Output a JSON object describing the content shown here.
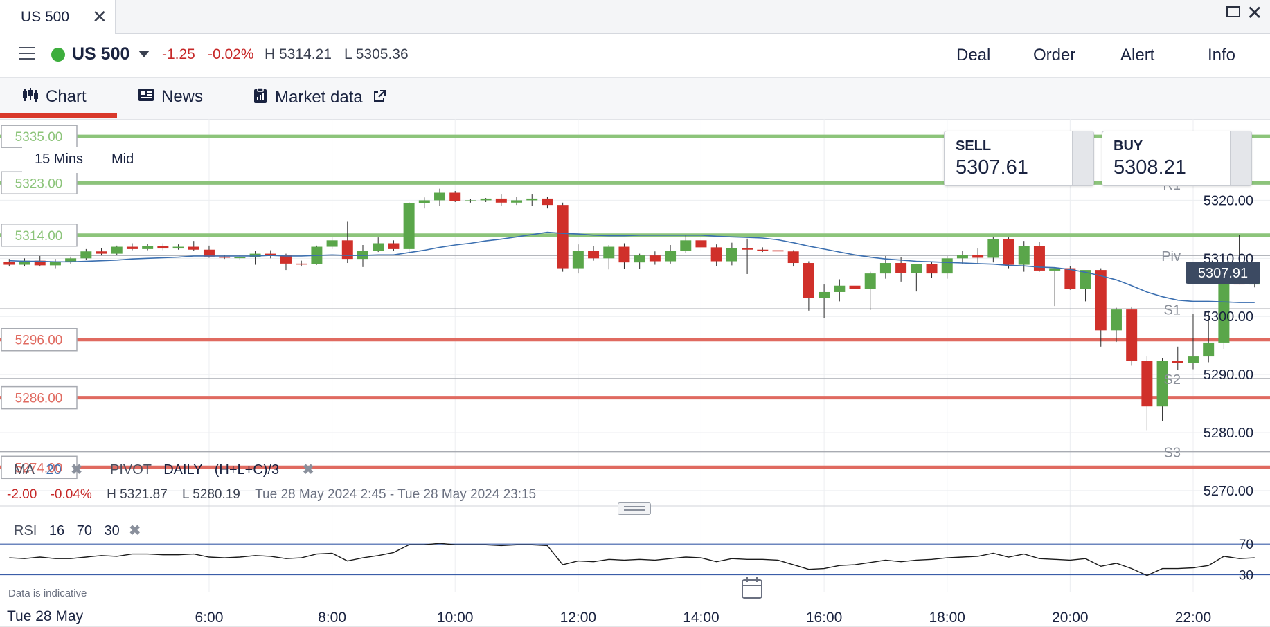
{
  "window": {
    "tab_title": "US 500",
    "close_glyph": "✕",
    "maximize_glyph": "☐",
    "window_close_glyph": "✕"
  },
  "header": {
    "instrument": "US 500",
    "change": "-1.25",
    "change_pct": "-0.02%",
    "high": "H 5314.21",
    "low": "L 5305.36",
    "actions": [
      "Deal",
      "Order",
      "Alert",
      "Info"
    ]
  },
  "tabs": [
    {
      "label": "Chart",
      "icon": "candlestick-icon"
    },
    {
      "label": "News",
      "icon": "newspaper-icon"
    },
    {
      "label": "Market data",
      "icon": "clipboard-icon",
      "external": "external-link-icon"
    }
  ],
  "colors": {
    "up": "#5aa64a",
    "down": "#d0302a",
    "ma": "#3b6fb0",
    "level_up": "#8cc47a",
    "level_down": "#e06a60",
    "accent": "#d9392b"
  },
  "deal": {
    "sell_label": "SELL",
    "sell_price": "5307.61",
    "buy_label": "BUY",
    "buy_price": "5308.21"
  },
  "timeframe": {
    "interval": "15 Mins",
    "price_type": "Mid"
  },
  "levels": [
    {
      "label": "5335.00",
      "price": 5331.0,
      "color": "green"
    },
    {
      "label": "5323.00",
      "price": 5323.0,
      "color": "green"
    },
    {
      "label": "5314.00",
      "price": 5314.0,
      "color": "green"
    },
    {
      "label": "5296.00",
      "price": 5296.0,
      "color": "red"
    },
    {
      "label": "5286.00",
      "price": 5286.0,
      "color": "red"
    },
    {
      "label": "5274.00",
      "price": 5274.0,
      "color": "red"
    }
  ],
  "pivots": [
    {
      "label": "R1",
      "price": 5322.8
    },
    {
      "label": "Piv",
      "price": 5310.5
    },
    {
      "label": "S1",
      "price": 5301.3
    },
    {
      "label": "S2",
      "price": 5289.3
    },
    {
      "label": "S3",
      "price": 5276.7
    }
  ],
  "current_price": "5307.91",
  "legend": {
    "ma_label": "MA",
    "ma_period": "20",
    "pivot_label": "PIVOT",
    "pivot_period": "DAILY",
    "pivot_formula": "(H+L+C)/3",
    "summary_change": "-2.00",
    "summary_pct": "-0.04%",
    "summary_high": "H 5321.87",
    "summary_low": "L 5280.19",
    "summary_range": "Tue 28 May 2024 2:45 - Tue 28 May 2024 23:15",
    "rsi_label": "RSI",
    "rsi_period": "16",
    "rsi_upper": "70",
    "rsi_lower": "30"
  },
  "footer": {
    "disclaimer": "Data is indicative",
    "date": "Tue 28 May"
  },
  "chart_data": {
    "type": "candlestick",
    "interval": "15 Mins",
    "y_ticks": [
      "5320.00",
      "5310.00",
      "5300.00",
      "5290.00",
      "5280.00",
      "5270.00"
    ],
    "y_tick_values": [
      5320,
      5310,
      5300,
      5290,
      5280,
      5270
    ],
    "ylim": [
      5267,
      5334
    ],
    "x_ticks": [
      "6:00",
      "8:00",
      "10:00",
      "12:00",
      "14:00",
      "16:00",
      "18:00",
      "20:00",
      "22:00"
    ],
    "x_tick_hours": [
      6,
      8,
      10,
      12,
      14,
      16,
      18,
      20,
      22
    ],
    "xlim_hours": [
      2.6,
      23.25
    ],
    "candle_start_hour": 2.75,
    "candle_step_hours": 0.25,
    "candles": [
      [
        5309.4,
        5309.9,
        5308.6,
        5308.9
      ],
      [
        5308.9,
        5310.0,
        5308.6,
        5309.6
      ],
      [
        5309.6,
        5310.4,
        5308.6,
        5308.8
      ],
      [
        5308.8,
        5309.9,
        5308.3,
        5309.5
      ],
      [
        5309.5,
        5310.3,
        5309.0,
        5310.0
      ],
      [
        5310.0,
        5311.6,
        5309.8,
        5311.2
      ],
      [
        5311.2,
        5311.8,
        5310.5,
        5310.8
      ],
      [
        5310.8,
        5312.2,
        5310.6,
        5312.0
      ],
      [
        5312.0,
        5312.6,
        5311.4,
        5311.6
      ],
      [
        5311.6,
        5312.5,
        5311.4,
        5312.1
      ],
      [
        5312.1,
        5312.6,
        5311.4,
        5311.7
      ],
      [
        5311.7,
        5312.4,
        5311.5,
        5312.0
      ],
      [
        5312.0,
        5313.0,
        5311.3,
        5311.5
      ],
      [
        5311.5,
        5312.2,
        5310.1,
        5310.3
      ],
      [
        5310.3,
        5310.6,
        5309.9,
        5310.1
      ],
      [
        5310.1,
        5310.5,
        5309.8,
        5310.2
      ],
      [
        5310.2,
        5311.3,
        5308.9,
        5310.8
      ],
      [
        5310.8,
        5311.4,
        5310.0,
        5310.5
      ],
      [
        5310.5,
        5310.8,
        5308.0,
        5309.1
      ],
      [
        5309.1,
        5309.6,
        5308.6,
        5309.0
      ],
      [
        5309.0,
        5312.2,
        5308.9,
        5312.0
      ],
      [
        5312.0,
        5313.7,
        5311.6,
        5313.1
      ],
      [
        5313.1,
        5316.3,
        5309.2,
        5309.9
      ],
      [
        5309.9,
        5312.3,
        5308.5,
        5311.3
      ],
      [
        5311.3,
        5313.6,
        5311.1,
        5312.6
      ],
      [
        5312.6,
        5313.1,
        5311.3,
        5311.6
      ],
      [
        5311.6,
        5319.7,
        5311.1,
        5319.5
      ],
      [
        5319.5,
        5320.5,
        5318.6,
        5320.0
      ],
      [
        5320.0,
        5322.0,
        5319.0,
        5321.3
      ],
      [
        5321.3,
        5321.6,
        5319.7,
        5319.9
      ],
      [
        5319.9,
        5320.2,
        5319.6,
        5320.0
      ],
      [
        5320.0,
        5320.4,
        5319.7,
        5320.3
      ],
      [
        5320.3,
        5321.0,
        5319.1,
        5319.6
      ],
      [
        5319.6,
        5320.6,
        5319.2,
        5320.0
      ],
      [
        5320.0,
        5321.0,
        5319.0,
        5320.3
      ],
      [
        5320.3,
        5320.6,
        5318.6,
        5319.2
      ],
      [
        5319.2,
        5319.6,
        5307.7,
        5308.3
      ],
      [
        5308.3,
        5312.4,
        5307.4,
        5311.3
      ],
      [
        5311.3,
        5312.1,
        5309.6,
        5310.0
      ],
      [
        5310.0,
        5312.3,
        5308.1,
        5312.0
      ],
      [
        5312.0,
        5312.6,
        5308.2,
        5309.3
      ],
      [
        5309.3,
        5310.8,
        5308.2,
        5310.5
      ],
      [
        5310.5,
        5311.2,
        5308.9,
        5309.5
      ],
      [
        5309.5,
        5312.3,
        5309.1,
        5311.3
      ],
      [
        5311.3,
        5314.0,
        5310.9,
        5313.1
      ],
      [
        5313.1,
        5313.8,
        5311.4,
        5311.9
      ],
      [
        5311.9,
        5312.4,
        5308.7,
        5309.5
      ],
      [
        5309.5,
        5312.7,
        5308.8,
        5311.8
      ],
      [
        5311.8,
        5313.4,
        5307.3,
        5311.5
      ],
      [
        5311.5,
        5311.9,
        5311.1,
        5311.4
      ],
      [
        5311.4,
        5313.3,
        5310.7,
        5311.2
      ],
      [
        5311.2,
        5311.4,
        5308.6,
        5309.2
      ],
      [
        5309.2,
        5309.5,
        5301.0,
        5303.2
      ],
      [
        5303.2,
        5305.5,
        5299.7,
        5304.2
      ],
      [
        5304.2,
        5306.4,
        5302.6,
        5305.3
      ],
      [
        5305.3,
        5306.5,
        5301.9,
        5304.7
      ],
      [
        5304.7,
        5307.7,
        5301.1,
        5307.4
      ],
      [
        5307.4,
        5310.4,
        5306.5,
        5309.2
      ],
      [
        5309.2,
        5310.2,
        5306.0,
        5307.5
      ],
      [
        5307.5,
        5308.8,
        5304.3,
        5309.0
      ],
      [
        5309.0,
        5309.4,
        5306.7,
        5307.4
      ],
      [
        5307.4,
        5310.4,
        5306.5,
        5310.0
      ],
      [
        5310.0,
        5311.3,
        5309.0,
        5310.6
      ],
      [
        5310.6,
        5311.7,
        5309.1,
        5310.1
      ],
      [
        5310.1,
        5313.7,
        5309.3,
        5313.3
      ],
      [
        5313.3,
        5313.6,
        5308.3,
        5308.9
      ],
      [
        5308.9,
        5313.0,
        5307.7,
        5312.1
      ],
      [
        5312.1,
        5312.8,
        5307.7,
        5307.9
      ],
      [
        5307.9,
        5308.3,
        5301.8,
        5308.3
      ],
      [
        5308.3,
        5308.7,
        5304.6,
        5304.7
      ],
      [
        5304.7,
        5307.9,
        5302.6,
        5308.0
      ],
      [
        5308.0,
        5308.3,
        5294.8,
        5297.6
      ],
      [
        5297.6,
        5301.5,
        5295.6,
        5301.2
      ],
      [
        5301.2,
        5301.7,
        5291.5,
        5292.3
      ],
      [
        5292.3,
        5293.1,
        5280.3,
        5284.5
      ],
      [
        5284.5,
        5292.8,
        5282.0,
        5292.3
      ],
      [
        5292.3,
        5294.8,
        5290.8,
        5292.0
      ],
      [
        5292.0,
        5300.4,
        5290.9,
        5293.1
      ],
      [
        5293.1,
        5301.0,
        5292.1,
        5295.5
      ],
      [
        5295.5,
        5308.6,
        5294.3,
        5307.8
      ],
      [
        5307.8,
        5314.0,
        5305.5,
        5305.5
      ],
      [
        5305.5,
        5308.0,
        5305.0,
        5307.4
      ]
    ],
    "ma20": [
      5309.6,
      5309.5,
      5309.5,
      5309.4,
      5309.4,
      5309.5,
      5309.6,
      5309.7,
      5309.9,
      5310.0,
      5310.1,
      5310.2,
      5310.4,
      5310.4,
      5310.4,
      5310.4,
      5310.4,
      5310.5,
      5310.4,
      5310.4,
      5310.5,
      5310.6,
      5310.5,
      5310.5,
      5310.6,
      5310.6,
      5311.0,
      5311.4,
      5311.9,
      5312.3,
      5312.6,
      5313.0,
      5313.3,
      5313.7,
      5314.1,
      5314.5,
      5314.3,
      5314.2,
      5314.0,
      5313.9,
      5313.9,
      5314.0,
      5314.0,
      5314.0,
      5314.0,
      5314.0,
      5313.8,
      5313.7,
      5313.6,
      5313.5,
      5313.2,
      5312.7,
      5312.1,
      5311.6,
      5311.1,
      5310.6,
      5310.2,
      5309.9,
      5309.7,
      5309.5,
      5309.4,
      5309.3,
      5309.2,
      5309.1,
      5309.0,
      5308.8,
      5308.7,
      5308.5,
      5308.4,
      5308.1,
      5307.6,
      5307.0,
      5306.3,
      5305.3,
      5304.2,
      5303.4,
      5302.8,
      5302.6,
      5302.6,
      5302.5,
      5302.4,
      5302.4
    ],
    "rsi": [
      52,
      51,
      53,
      51,
      51,
      53,
      55,
      54,
      57,
      57,
      56,
      56,
      57,
      53,
      52,
      53,
      55,
      54,
      51,
      52,
      57,
      58,
      48,
      52,
      55,
      59,
      69,
      69,
      71,
      69,
      69,
      69,
      68,
      69,
      69,
      68,
      43,
      48,
      47,
      50,
      49,
      50,
      49,
      51,
      53,
      52,
      47,
      51,
      50,
      50,
      49,
      43,
      37,
      38,
      42,
      43,
      46,
      49,
      47,
      49,
      50,
      52,
      53,
      54,
      58,
      53,
      57,
      51,
      50,
      49,
      51,
      41,
      45,
      38,
      29,
      38,
      38,
      39,
      42,
      54,
      51,
      52
    ],
    "rsi_ylim": [
      16,
      81
    ],
    "rsi_levels": [
      70,
      30
    ]
  }
}
